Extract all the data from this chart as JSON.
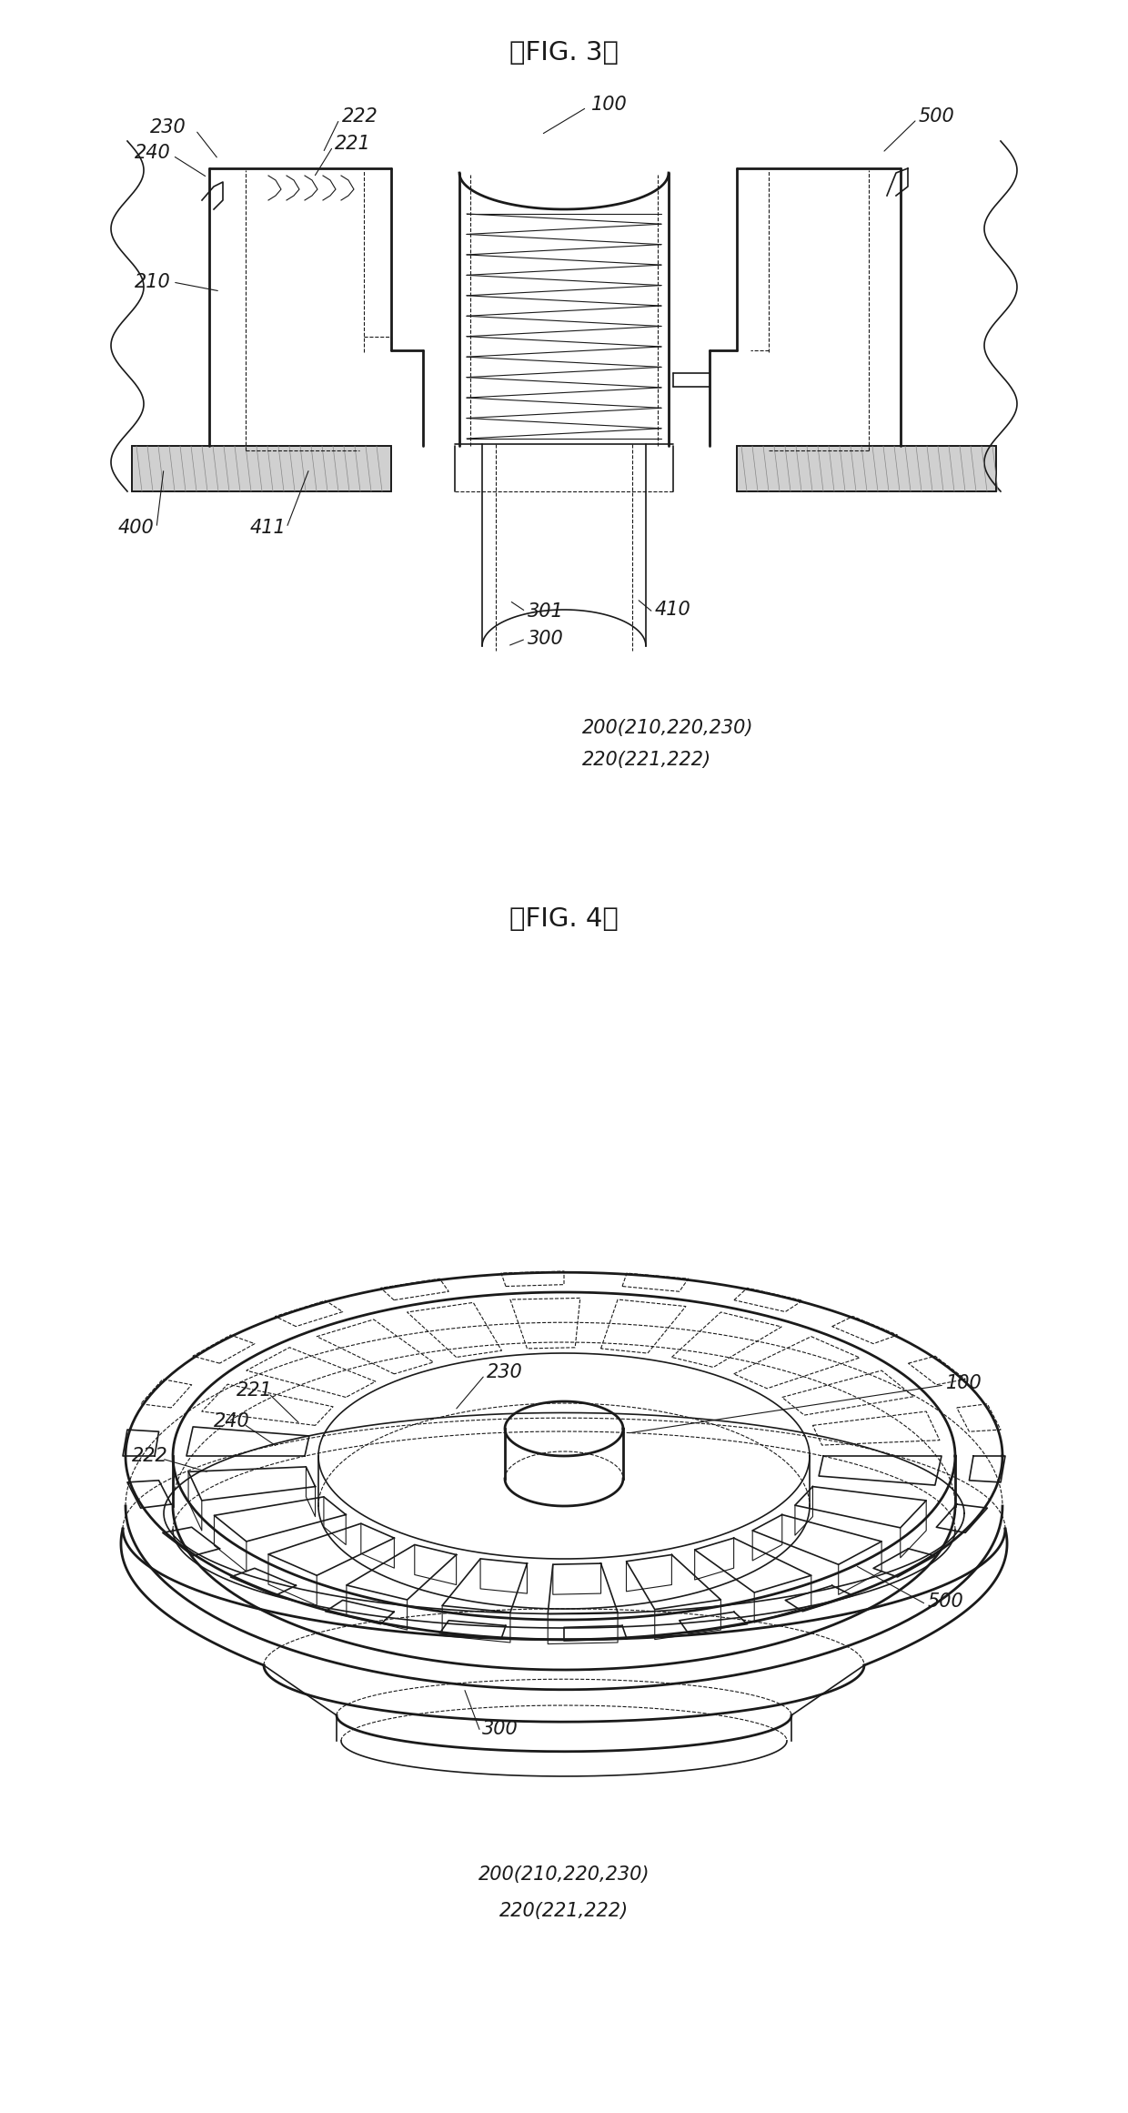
{
  "fig_width": 12.4,
  "fig_height": 23.22,
  "dpi": 100,
  "bg_color": "#ffffff",
  "line_color": "#1a1a1a",
  "fig3_title": "』FIG. 3『",
  "fig4_title": "』FIG. 4『",
  "title_fontsize": 20,
  "label_fontsize": 15
}
